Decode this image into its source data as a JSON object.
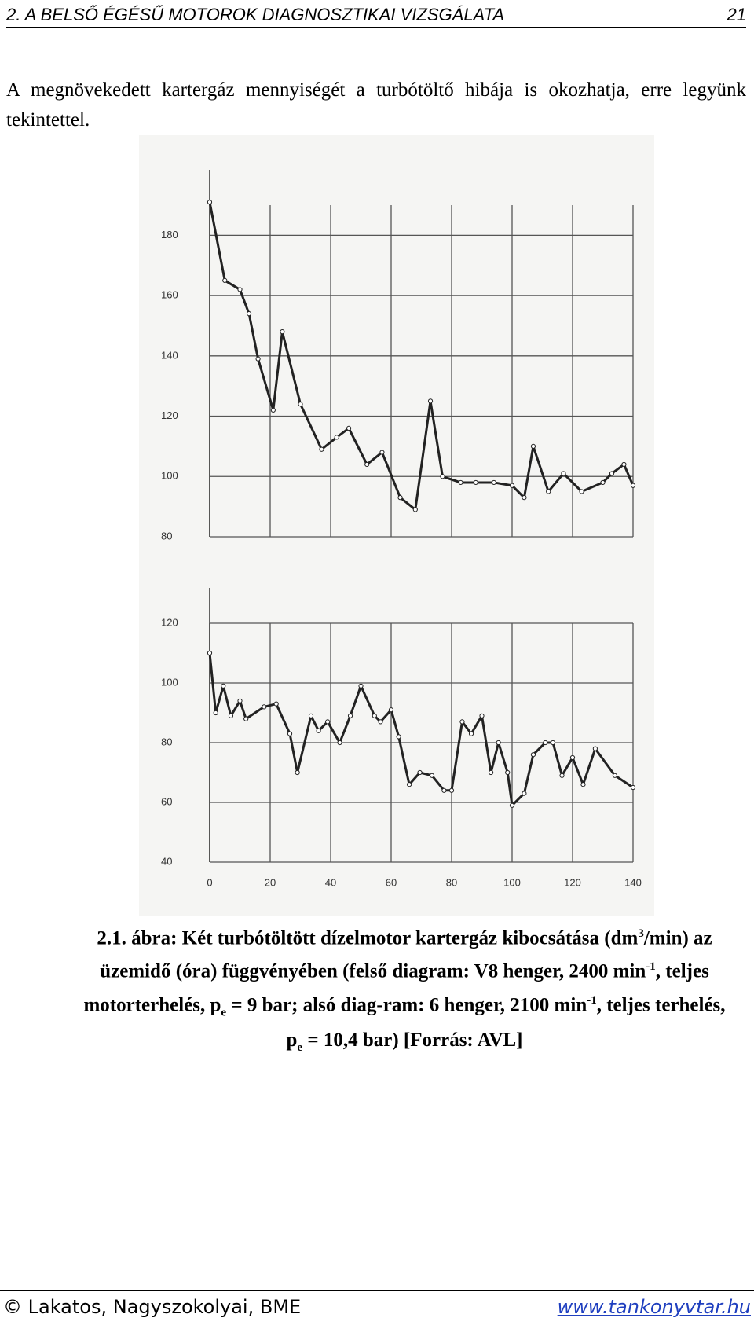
{
  "header": {
    "title": "2. A BELSŐ ÉGÉSŰ MOTOROK DIAGNOSZTIKAI VIZSGÁLATA",
    "page": "21"
  },
  "paragraph": "A megnövekedett kartergáz mennyiségét a turbótöltő hibája is okozhatja, erre legyünk tekintettel.",
  "chart_data": [
    {
      "type": "line",
      "color": "#222222",
      "grid": true,
      "xtick_labels": false,
      "x": [
        0,
        5,
        10,
        13,
        16,
        21,
        24,
        30,
        37,
        42,
        46,
        52,
        57,
        63,
        68,
        73,
        77,
        83,
        88,
        94,
        100,
        104,
        107,
        112,
        117,
        123,
        130,
        133,
        137,
        140
      ],
      "values": [
        191,
        165,
        162,
        154,
        139,
        122,
        148,
        124,
        109,
        113,
        116,
        104,
        108,
        93,
        89,
        125,
        100,
        98,
        98,
        98,
        97,
        93,
        110,
        95,
        101,
        95,
        98,
        101,
        104,
        97
      ],
      "xlim": [
        0,
        140
      ],
      "xticks": [
        0,
        20,
        40,
        60,
        80,
        100,
        120,
        140
      ],
      "ylim": [
        80,
        190
      ],
      "yticks": [
        80,
        100,
        120,
        140,
        160,
        180
      ]
    },
    {
      "type": "line",
      "color": "#222222",
      "grid": true,
      "xtick_labels": true,
      "x": [
        0,
        2,
        4.5,
        7,
        10,
        12,
        18,
        22,
        26.5,
        29,
        33.5,
        36,
        39,
        43,
        46.5,
        50,
        54.5,
        56.5,
        60,
        62.5,
        66,
        69.5,
        73.5,
        77.5,
        80,
        83.5,
        86.5,
        90,
        93,
        95.5,
        98.5,
        100,
        104,
        107,
        111,
        113.5,
        116.5,
        120,
        123.5,
        127.5,
        134,
        140
      ],
      "values": [
        110,
        90,
        99,
        89,
        94,
        88,
        92,
        93,
        83,
        70,
        89,
        84,
        87,
        80,
        89,
        99,
        89,
        87,
        91,
        82,
        66,
        70,
        69,
        64,
        64,
        87,
        83,
        89,
        70,
        80,
        70,
        59,
        63,
        76,
        80,
        80,
        69,
        75,
        66,
        78,
        69,
        65
      ],
      "xlim": [
        0,
        140
      ],
      "xticks": [
        0,
        20,
        40,
        60,
        80,
        100,
        120,
        140
      ],
      "ylim": [
        40,
        120
      ],
      "yticks": [
        40,
        60,
        80,
        100,
        120
      ]
    }
  ],
  "caption": {
    "parts": [
      "2.1. ábra: Két turbótöltött dízelmotor kartergáz kibocsátása (dm",
      "3",
      "/min) az üzemidő (óra) függvényében (felső diagram: V8 henger, 2400 min",
      "-1",
      ", teljes motorterhelés, p",
      "e",
      " = 9 bar; alsó diag-ram: 6 henger, 2100 min",
      "-1",
      ", teljes terhelés, p",
      "e",
      " = 10,4 bar) [Forrás: AVL]"
    ]
  },
  "footer": {
    "left": "© Lakatos, Nagyszokolyai, BME",
    "right": "www.tankonyvtar.hu"
  }
}
